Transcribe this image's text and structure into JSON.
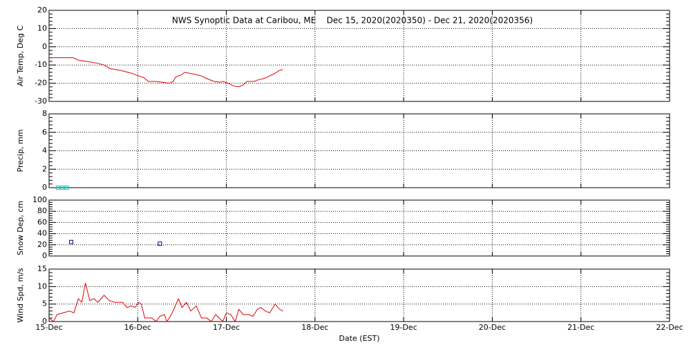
{
  "chart_data": [
    {
      "type": "line",
      "title": "NWS Synoptic Data at Caribou, ME    Dec 15, 2020(2020350) - Dec 21, 2020(2020356)",
      "ylabel": "Air Temp, Deg C",
      "ylim": [
        -30,
        20
      ],
      "yticks": [
        -30,
        -20,
        -10,
        0,
        10,
        20
      ],
      "grid": true,
      "x": [
        0,
        0.27,
        0.34,
        0.42,
        0.54,
        0.62,
        0.69,
        0.81,
        0.93,
        1.01,
        1.07,
        1.12,
        1.2,
        1.28,
        1.36,
        1.4,
        1.43,
        1.49,
        1.53,
        1.63,
        1.72,
        1.78,
        1.86,
        1.93,
        1.96,
        2.02,
        2.08,
        2.14,
        2.19,
        2.23,
        2.31,
        2.37,
        2.42,
        2.49,
        2.55,
        2.6,
        2.64
      ],
      "values": [
        -6,
        -6,
        -7.5,
        -8,
        -9,
        -10,
        -12,
        -13,
        -14.5,
        -16,
        -17,
        -19,
        -19,
        -19.5,
        -20,
        -19,
        -16.5,
        -15.5,
        -14,
        -15,
        -16,
        -17.5,
        -19,
        -19.5,
        -19,
        -20,
        -21.5,
        -22,
        -21,
        -19,
        -19,
        -18,
        -17.5,
        -16,
        -14.5,
        -13,
        -12.5
      ],
      "color": "#e00000"
    },
    {
      "type": "scatter",
      "ylabel": "Precip, mm",
      "ylim": [
        0,
        8
      ],
      "yticks": [
        0,
        2,
        4,
        6,
        8
      ],
      "grid": true,
      "x": [
        0.1,
        0.15,
        0.2
      ],
      "values": [
        0,
        0,
        0
      ],
      "color": "#00c8c8"
    },
    {
      "type": "scatter",
      "ylabel": "Snow Dep, cm",
      "ylim": [
        0,
        100
      ],
      "yticks": [
        0,
        20,
        40,
        60,
        80,
        100
      ],
      "grid": true,
      "x": [
        0.25,
        1.25
      ],
      "values": [
        25,
        22
      ],
      "color": "#000080"
    },
    {
      "type": "line",
      "ylabel": "Wind Spd, m/s",
      "ylim": [
        0,
        15
      ],
      "yticks": [
        0,
        5,
        10,
        15
      ],
      "grid": true,
      "xlabel": "Date (EST)",
      "xlim": [
        0,
        7
      ],
      "xticks": [
        {
          "value": 0,
          "label": "15-Dec"
        },
        {
          "value": 1,
          "label": "16-Dec"
        },
        {
          "value": 2,
          "label": "17-Dec"
        },
        {
          "value": 3,
          "label": "18-Dec"
        },
        {
          "value": 4,
          "label": "19-Dec"
        },
        {
          "value": 5,
          "label": "20-Dec"
        },
        {
          "value": 6,
          "label": "21-Dec"
        },
        {
          "value": 7,
          "label": "22-Dec"
        }
      ],
      "x": [
        0,
        0.05,
        0.09,
        0.16,
        0.23,
        0.28,
        0.33,
        0.37,
        0.41,
        0.46,
        0.51,
        0.55,
        0.62,
        0.68,
        0.74,
        0.83,
        0.88,
        0.93,
        0.97,
        1.01,
        1.04,
        1.08,
        1.16,
        1.21,
        1.25,
        1.3,
        1.33,
        1.38,
        1.46,
        1.5,
        1.55,
        1.6,
        1.66,
        1.72,
        1.78,
        1.83,
        1.88,
        1.96,
        2.0,
        2.05,
        2.1,
        2.14,
        2.19,
        2.25,
        2.3,
        2.35,
        2.39,
        2.44,
        2.49,
        2.55,
        2.6,
        2.64
      ],
      "values": [
        1,
        0,
        2,
        2.5,
        3,
        2.5,
        6.5,
        5.5,
        11,
        6,
        6.5,
        5.5,
        7.5,
        6,
        5.5,
        5.5,
        4,
        4.5,
        4,
        5.5,
        5,
        1,
        1,
        0,
        1.5,
        2,
        0,
        2,
        6.5,
        4,
        5.5,
        3,
        4.5,
        1,
        1,
        0,
        2,
        0,
        2.5,
        2,
        0,
        3.5,
        2,
        2,
        1.5,
        3.5,
        4,
        3,
        2.5,
        5,
        3.5,
        3
      ],
      "color": "#e00000"
    }
  ]
}
